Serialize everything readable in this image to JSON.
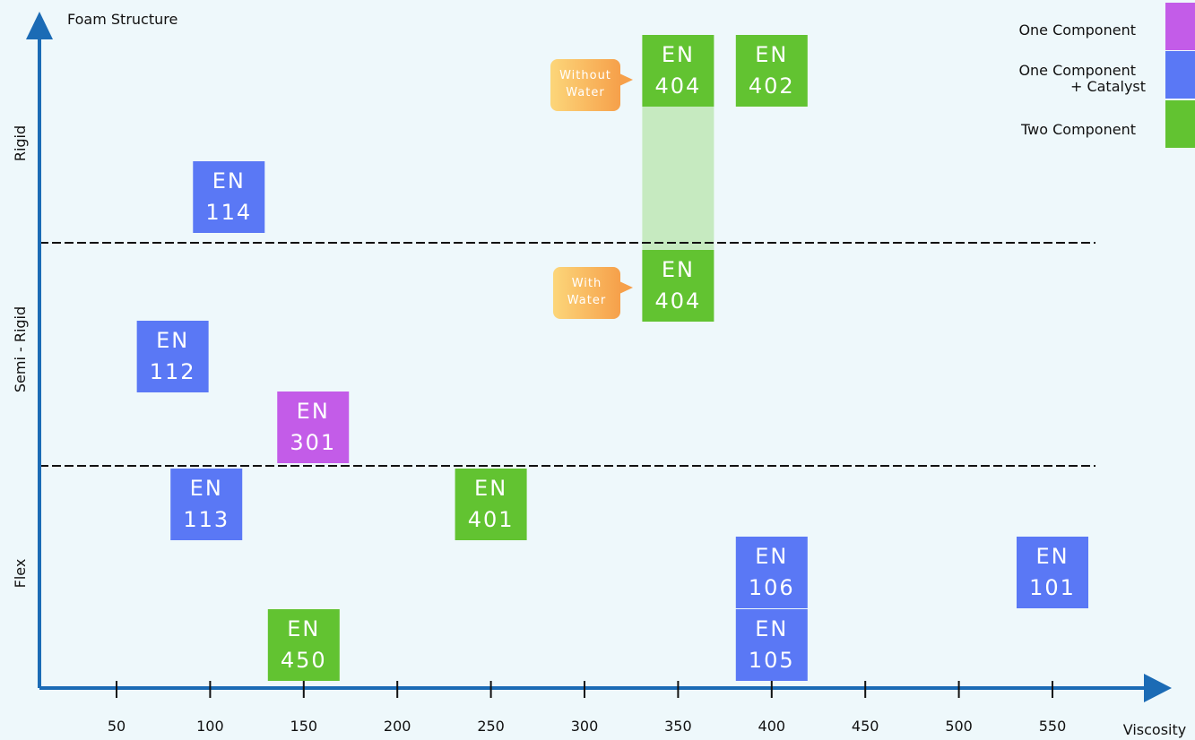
{
  "chart_data": {
    "type": "scatter",
    "title": "",
    "xlabel": "Viscosity",
    "ylabel": "Foam Structure",
    "x_ticks": [
      50,
      100,
      150,
      200,
      250,
      300,
      350,
      400,
      450,
      500,
      550
    ],
    "y_categories": [
      "Flex",
      "Semi - Rigid",
      "Rigid"
    ],
    "colors": {
      "One Component": "#c35ce8",
      "One Component + Catalyst": "#5a78f5",
      "Two Component": "#62c331",
      "shaded": "#c6eac0",
      "axis": "#1b6bb5",
      "callout": "#f6a04a"
    },
    "legend": {
      "position": "top-right",
      "entries": [
        {
          "label_lines": [
            "One Component"
          ],
          "key": "One Component"
        },
        {
          "label_lines": [
            "One Component",
            "+ Catalyst"
          ],
          "key": "One Component + Catalyst"
        },
        {
          "label_lines": [
            "Two Component"
          ],
          "key": "Two Component"
        }
      ]
    },
    "products": [
      {
        "line1": "EN",
        "line2": "404",
        "viscosity": 350,
        "structure": "Rigid",
        "type": "Two Component",
        "note": "Without Water"
      },
      {
        "line1": "EN",
        "line2": "402",
        "viscosity": 400,
        "structure": "Rigid",
        "type": "Two Component"
      },
      {
        "line1": "EN",
        "line2": "114",
        "viscosity": 110,
        "structure": "Rigid",
        "type": "One Component + Catalyst"
      },
      {
        "line1": "EN",
        "line2": "404",
        "viscosity": 350,
        "structure": "Semi - Rigid",
        "type": "Two Component",
        "note": "With Water"
      },
      {
        "line1": "EN",
        "line2": "112",
        "viscosity": 80,
        "structure": "Semi - Rigid",
        "type": "One Component + Catalyst"
      },
      {
        "line1": "EN",
        "line2": "301",
        "viscosity": 155,
        "structure": "Semi - Rigid",
        "type": "One Component"
      },
      {
        "line1": "EN",
        "line2": "113",
        "viscosity": 98,
        "structure": "Flex",
        "type": "One Component + Catalyst"
      },
      {
        "line1": "EN",
        "line2": "401",
        "viscosity": 250,
        "structure": "Flex",
        "type": "Two Component"
      },
      {
        "line1": "EN",
        "line2": "106",
        "viscosity": 400,
        "structure": "Flex",
        "type": "One Component + Catalyst"
      },
      {
        "line1": "EN",
        "line2": "101",
        "viscosity": 550,
        "structure": "Flex",
        "type": "One Component + Catalyst"
      },
      {
        "line1": "EN",
        "line2": "450",
        "viscosity": 150,
        "structure": "Flex",
        "type": "Two Component"
      },
      {
        "line1": "EN",
        "line2": "105",
        "viscosity": 400,
        "structure": "Flex",
        "type": "One Component + Catalyst"
      }
    ],
    "callouts": [
      {
        "lines": [
          "Without",
          "Water"
        ]
      },
      {
        "lines": [
          "With",
          "Water"
        ]
      }
    ]
  }
}
